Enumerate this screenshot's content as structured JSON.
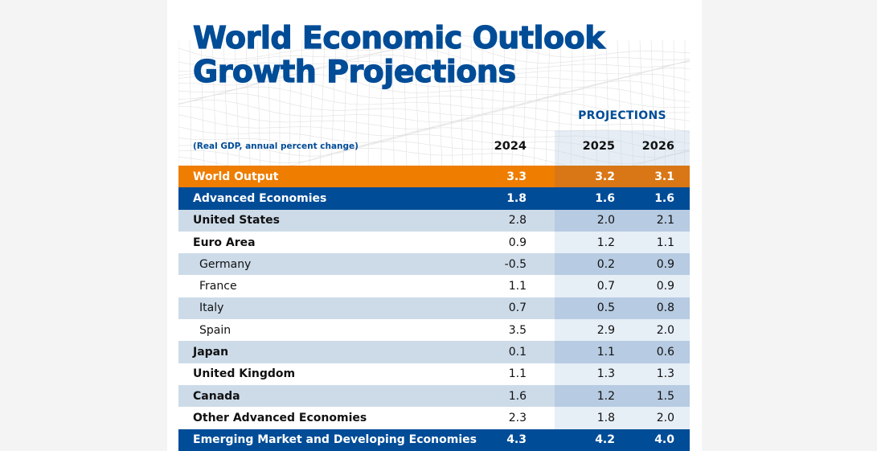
{
  "title_line1": "World Economic Outlook",
  "title_line2": "Growth Projections",
  "projections_label": "PROJECTIONS",
  "subtitle": "(Real GDP, annual percent change)",
  "years": [
    "2024",
    "2025",
    "2026"
  ],
  "colors": {
    "brand_blue": "#004c97",
    "orange": "#ee7d00",
    "shade": "#cddbe9"
  },
  "rows": [
    {
      "label": "World Output",
      "v2024": "3.3",
      "v2025": "3.2",
      "v2026": "3.1",
      "style": "orange"
    },
    {
      "label": "Advanced Economies",
      "v2024": "1.8",
      "v2025": "1.6",
      "v2026": "1.6",
      "style": "blue"
    },
    {
      "label": "United States",
      "v2024": "2.8",
      "v2025": "2.0",
      "v2026": "2.1",
      "style": "shade"
    },
    {
      "label": "Euro Area",
      "v2024": "0.9",
      "v2025": "1.2",
      "v2026": "1.1",
      "style": "plain"
    },
    {
      "label": "Germany",
      "v2024": "-0.5",
      "v2025": "0.2",
      "v2026": "0.9",
      "style": "shade",
      "indent": true
    },
    {
      "label": "France",
      "v2024": "1.1",
      "v2025": "0.7",
      "v2026": "0.9",
      "style": "plain",
      "indent": true
    },
    {
      "label": "Italy",
      "v2024": "0.7",
      "v2025": "0.5",
      "v2026": "0.8",
      "style": "shade",
      "indent": true
    },
    {
      "label": "Spain",
      "v2024": "3.5",
      "v2025": "2.9",
      "v2026": "2.0",
      "style": "plain",
      "indent": true
    },
    {
      "label": "Japan",
      "v2024": "0.1",
      "v2025": "1.1",
      "v2026": "0.6",
      "style": "shade"
    },
    {
      "label": "United Kingdom",
      "v2024": "1.1",
      "v2025": "1.3",
      "v2026": "1.3",
      "style": "plain"
    },
    {
      "label": "Canada",
      "v2024": "1.6",
      "v2025": "1.2",
      "v2026": "1.5",
      "style": "shade"
    },
    {
      "label": "Other Advanced Economies",
      "v2024": "2.3",
      "v2025": "1.8",
      "v2026": "2.0",
      "style": "plain"
    },
    {
      "label": "Emerging Market and Developing Economies",
      "v2024": "4.3",
      "v2025": "4.2",
      "v2026": "4.0",
      "style": "blue"
    }
  ]
}
